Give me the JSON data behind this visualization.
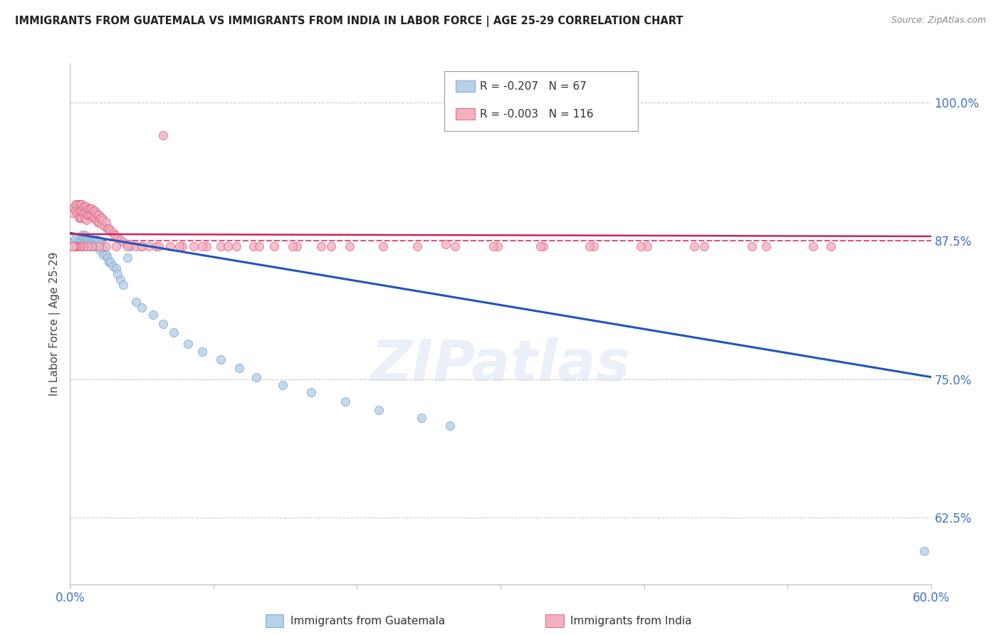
{
  "title": "IMMIGRANTS FROM GUATEMALA VS IMMIGRANTS FROM INDIA IN LABOR FORCE | AGE 25-29 CORRELATION CHART",
  "source": "Source: ZipAtlas.com",
  "ylabel": "In Labor Force | Age 25-29",
  "legend_blue_r": "-0.207",
  "legend_blue_n": "67",
  "legend_pink_r": "-0.003",
  "legend_pink_n": "116",
  "xlim": [
    0.0,
    0.6
  ],
  "ylim": [
    0.565,
    1.035
  ],
  "yticks": [
    0.625,
    0.75,
    0.875,
    1.0
  ],
  "ytick_labels": [
    "62.5%",
    "75.0%",
    "87.5%",
    "100.0%"
  ],
  "xtick_left": "0.0%",
  "xtick_right": "60.0%",
  "blue_trend": [
    0.0,
    0.882,
    0.6,
    0.752
  ],
  "pink_trend": [
    0.0,
    0.881,
    0.6,
    0.879
  ],
  "hline_y": 0.875,
  "watermark": "ZIPatlas",
  "guat_x": [
    0.003,
    0.004,
    0.005,
    0.006,
    0.006,
    0.007,
    0.007,
    0.008,
    0.008,
    0.008,
    0.009,
    0.009,
    0.01,
    0.01,
    0.01,
    0.011,
    0.011,
    0.012,
    0.012,
    0.013,
    0.013,
    0.014,
    0.014,
    0.015,
    0.015,
    0.016,
    0.016,
    0.017,
    0.017,
    0.018,
    0.018,
    0.019,
    0.019,
    0.02,
    0.021,
    0.021,
    0.022,
    0.023,
    0.023,
    0.025,
    0.026,
    0.027,
    0.028,
    0.03,
    0.032,
    0.033,
    0.035,
    0.037,
    0.04,
    0.042,
    0.046,
    0.05,
    0.058,
    0.065,
    0.072,
    0.082,
    0.092,
    0.105,
    0.118,
    0.13,
    0.148,
    0.168,
    0.192,
    0.215,
    0.245,
    0.265,
    0.595
  ],
  "guat_y": [
    0.875,
    0.877,
    0.872,
    0.875,
    0.87,
    0.878,
    0.873,
    0.88,
    0.875,
    0.87,
    0.878,
    0.873,
    0.88,
    0.875,
    0.87,
    0.878,
    0.873,
    0.878,
    0.873,
    0.878,
    0.872,
    0.876,
    0.87,
    0.876,
    0.87,
    0.876,
    0.87,
    0.876,
    0.87,
    0.876,
    0.87,
    0.876,
    0.87,
    0.874,
    0.872,
    0.866,
    0.87,
    0.868,
    0.862,
    0.862,
    0.86,
    0.856,
    0.856,
    0.852,
    0.85,
    0.845,
    0.84,
    0.835,
    0.86,
    0.87,
    0.82,
    0.815,
    0.808,
    0.8,
    0.792,
    0.782,
    0.775,
    0.768,
    0.76,
    0.752,
    0.745,
    0.738,
    0.73,
    0.722,
    0.715,
    0.708,
    0.595
  ],
  "india_x": [
    0.002,
    0.003,
    0.004,
    0.004,
    0.005,
    0.005,
    0.006,
    0.006,
    0.006,
    0.007,
    0.007,
    0.007,
    0.008,
    0.008,
    0.008,
    0.009,
    0.009,
    0.01,
    0.01,
    0.01,
    0.011,
    0.011,
    0.011,
    0.012,
    0.012,
    0.013,
    0.013,
    0.014,
    0.014,
    0.015,
    0.015,
    0.016,
    0.016,
    0.017,
    0.017,
    0.018,
    0.018,
    0.019,
    0.019,
    0.02,
    0.02,
    0.021,
    0.022,
    0.022,
    0.023,
    0.024,
    0.025,
    0.026,
    0.027,
    0.028,
    0.03,
    0.031,
    0.033,
    0.035,
    0.037,
    0.04,
    0.042,
    0.046,
    0.05,
    0.055,
    0.06,
    0.065,
    0.07,
    0.078,
    0.086,
    0.095,
    0.105,
    0.116,
    0.128,
    0.142,
    0.158,
    0.175,
    0.195,
    0.218,
    0.242,
    0.268,
    0.298,
    0.33,
    0.365,
    0.402,
    0.442,
    0.485,
    0.53,
    0.262,
    0.295,
    0.328,
    0.362,
    0.398,
    0.435,
    0.475,
    0.518,
    0.182,
    0.155,
    0.132,
    0.11,
    0.092,
    0.076,
    0.062,
    0.05,
    0.04,
    0.032,
    0.025,
    0.02,
    0.015,
    0.012,
    0.009,
    0.007,
    0.006,
    0.005,
    0.004,
    0.003,
    0.003,
    0.003,
    0.002,
    0.002,
    0.002
  ],
  "india_y": [
    0.9,
    0.905,
    0.908,
    0.902,
    0.908,
    0.9,
    0.908,
    0.902,
    0.896,
    0.908,
    0.902,
    0.896,
    0.908,
    0.902,
    0.896,
    0.906,
    0.9,
    0.906,
    0.9,
    0.895,
    0.906,
    0.9,
    0.894,
    0.904,
    0.898,
    0.904,
    0.898,
    0.904,
    0.898,
    0.904,
    0.898,
    0.902,
    0.896,
    0.902,
    0.896,
    0.9,
    0.894,
    0.898,
    0.892,
    0.898,
    0.892,
    0.896,
    0.896,
    0.89,
    0.894,
    0.888,
    0.892,
    0.886,
    0.886,
    0.884,
    0.882,
    0.88,
    0.878,
    0.876,
    0.874,
    0.872,
    0.872,
    0.87,
    0.87,
    0.87,
    0.87,
    0.97,
    0.87,
    0.87,
    0.87,
    0.87,
    0.87,
    0.87,
    0.87,
    0.87,
    0.87,
    0.87,
    0.87,
    0.87,
    0.87,
    0.87,
    0.87,
    0.87,
    0.87,
    0.87,
    0.87,
    0.87,
    0.87,
    0.872,
    0.87,
    0.87,
    0.87,
    0.87,
    0.87,
    0.87,
    0.87,
    0.87,
    0.87,
    0.87,
    0.87,
    0.87,
    0.87,
    0.87,
    0.87,
    0.87,
    0.87,
    0.87,
    0.87,
    0.87,
    0.87,
    0.87,
    0.87,
    0.87,
    0.87,
    0.87,
    0.87,
    0.87,
    0.87,
    0.87,
    0.87,
    0.87
  ]
}
